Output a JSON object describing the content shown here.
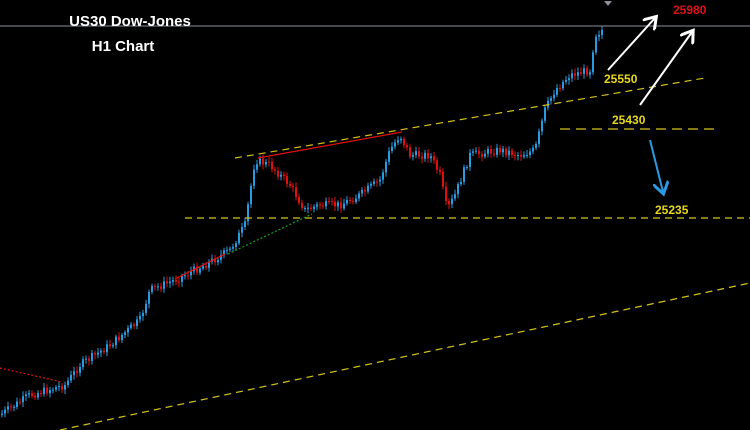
{
  "header": {
    "title": "US30 Dow-Jones",
    "subtitle": "H1 Chart"
  },
  "levels": {
    "target_high": "25980",
    "upper_trend": "25550",
    "resistance": "25430",
    "support": "25235"
  }
}
